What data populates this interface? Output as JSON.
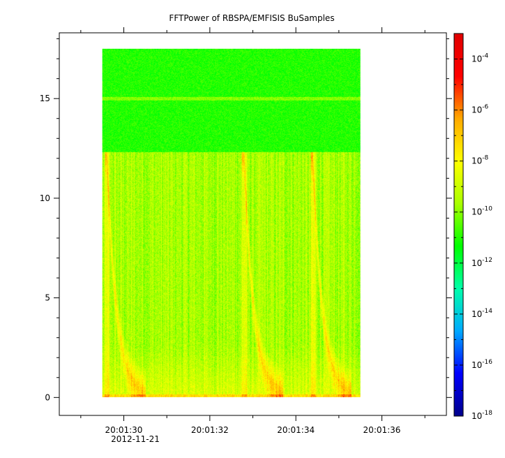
{
  "chart_data": {
    "type": "heatmap",
    "title": "FFTPower of RBSPA/EMFISIS  BuSamples",
    "xlabel": "",
    "ylabel": "",
    "x_ticks": [
      "20:01:30",
      "20:01:32",
      "20:01:34",
      "20:01:36"
    ],
    "x_tick_values_sec": [
      30,
      32,
      34,
      36
    ],
    "x_date_label": "2012-11-21",
    "xlim_sec": [
      28.5,
      37.5
    ],
    "data_x_range_sec": [
      29.5,
      35.5
    ],
    "y_ticks": [
      "0",
      "5",
      "10",
      "15"
    ],
    "y_tick_values": [
      0,
      5,
      10,
      15
    ],
    "ylim": [
      -0.9,
      18.3
    ],
    "data_y_range": [
      0,
      17.5
    ],
    "colorbar": {
      "scale": "log",
      "range": [
        1e-18,
        0.001
      ],
      "tick_labels": [
        {
          "base": "10",
          "exp": "-4"
        },
        {
          "base": "10",
          "exp": "-6"
        },
        {
          "base": "10",
          "exp": "-8"
        },
        {
          "base": "10",
          "exp": "-10"
        },
        {
          "base": "10",
          "exp": "-12"
        },
        {
          "base": "10",
          "exp": "-14"
        },
        {
          "base": "10",
          "exp": "-16"
        },
        {
          "base": "10",
          "exp": "-18"
        }
      ],
      "tick_log_values": [
        -4,
        -6,
        -8,
        -10,
        -12,
        -14,
        -16,
        -18
      ],
      "colors": [
        "#00008c",
        "#0000ff",
        "#00aaff",
        "#00ffaa",
        "#00ff00",
        "#aaff00",
        "#ffff00",
        "#ffaa00",
        "#ff0000",
        "#e00000"
      ]
    },
    "features": {
      "background_level_above_12_3": "1e-11",
      "background_level_below_12_3": "1e-9",
      "horizontal_line_y": 15,
      "chorus_burst_x_sec": [
        29.6,
        32.8,
        34.4
      ]
    }
  }
}
